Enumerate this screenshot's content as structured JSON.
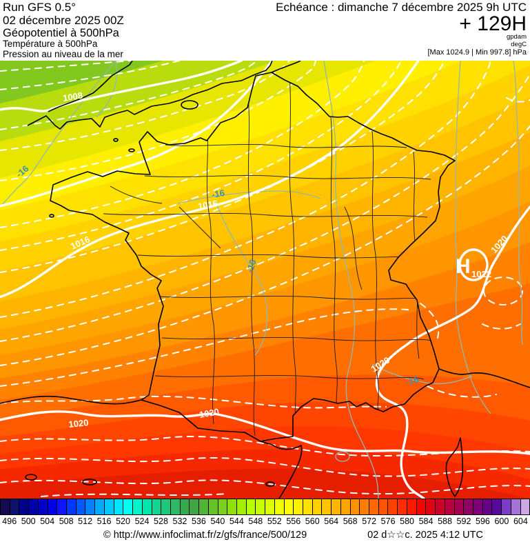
{
  "header": {
    "left": {
      "run": "Run GFS 0.5°",
      "date": "02 décembre 2025 00Z",
      "layer1": "Géopotentiel à 500hPa",
      "layer2": "Température à 500hPa",
      "layer3": "Pression au niveau de la mer"
    },
    "right": {
      "echeance": "Echéance : dimanche 7 décembre 2025 9h UTC",
      "hour": "+ 129H",
      "unit_top": "gpdam",
      "unit_bottom": "degC",
      "minmax": "[Max 1024.9 | Min 997.8] hPa"
    }
  },
  "map": {
    "high_letter": "H",
    "high_value": "1022",
    "isobar_1008": "1008",
    "isobar_1016": "1016",
    "isobar_1020": "1020",
    "temp_label": "-16",
    "band_colors": [
      "#82c81e",
      "#b9dc0f",
      "#e6e600",
      "#fff000",
      "#ffe100",
      "#ffd200",
      "#ffc300",
      "#ffb400",
      "#ffa500",
      "#ff9600",
      "#ff8200",
      "#ff6e00",
      "#ff5a00",
      "#ff4600",
      "#ff3700",
      "#f52800",
      "#e61e00"
    ]
  },
  "colorbar": {
    "colors": [
      "#140a50",
      "#0f0f6e",
      "#00008c",
      "#0000aa",
      "#0000c8",
      "#0000e6",
      "#0f14ff",
      "#0037ff",
      "#005aff",
      "#0082ff",
      "#00aaff",
      "#00c8ff",
      "#00e6ff",
      "#00fff0",
      "#00f5cd",
      "#00e6aa",
      "#0fd791",
      "#1ec878",
      "#2db964",
      "#37aa50",
      "#41a546",
      "#50b437",
      "#64c328",
      "#78d219",
      "#8ce10a",
      "#a0f000",
      "#b4ff00",
      "#c8ff00",
      "#dcff00",
      "#f0ff00",
      "#ffff00",
      "#fff000",
      "#ffe100",
      "#ffd200",
      "#ffc300",
      "#ffb400",
      "#ffa500",
      "#ff9100",
      "#ff7d00",
      "#ff6900",
      "#ff5500",
      "#ff4100",
      "#ff2d00",
      "#ff1900",
      "#f50500",
      "#e10014",
      "#cd0028",
      "#b9003c",
      "#a50050",
      "#910064",
      "#7d0078",
      "#69008c",
      "#550a9b",
      "#7d3cc8",
      "#a573d7",
      "#cdaae6"
    ],
    "labels": [
      "496",
      "500",
      "504",
      "508",
      "512",
      "516",
      "520",
      "524",
      "528",
      "532",
      "536",
      "540",
      "544",
      "548",
      "552",
      "556",
      "560",
      "564",
      "568",
      "572",
      "576",
      "580",
      "584",
      "588",
      "592",
      "596",
      "600",
      "604"
    ]
  },
  "footer": {
    "copyright": "© http://www.infoclimat.fr/z/gfs/france/500/129",
    "generated": "02 d☆☆c. 2025  4:12 UTC"
  }
}
